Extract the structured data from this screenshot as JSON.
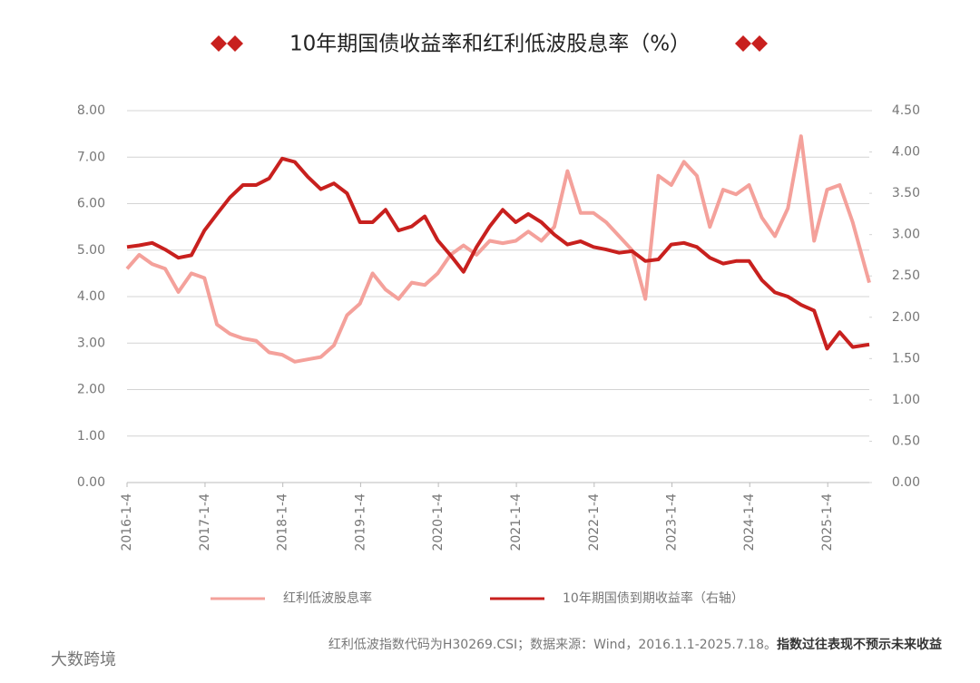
{
  "chart_data": {
    "type": "line",
    "title": "10年期国债收益率和红利低波股息率（%）",
    "x": [
      "2016-1-4",
      "2016-3-1",
      "2016-5-1",
      "2016-7-1",
      "2016-9-1",
      "2016-11-1",
      "2017-1-1",
      "2017-3-1",
      "2017-5-1",
      "2017-7-1",
      "2017-9-1",
      "2017-11-1",
      "2018-1-1",
      "2018-3-1",
      "2018-5-1",
      "2018-7-1",
      "2018-9-1",
      "2018-11-1",
      "2019-1-1",
      "2019-3-1",
      "2019-5-1",
      "2019-7-1",
      "2019-9-1",
      "2019-11-1",
      "2020-1-1",
      "2020-3-1",
      "2020-5-1",
      "2020-7-1",
      "2020-9-1",
      "2020-11-1",
      "2021-1-1",
      "2021-3-1",
      "2021-5-1",
      "2021-7-1",
      "2021-9-1",
      "2021-11-1",
      "2022-1-1",
      "2022-3-1",
      "2022-5-1",
      "2022-7-1",
      "2022-9-1",
      "2022-11-1",
      "2023-1-1",
      "2023-3-1",
      "2023-5-1",
      "2023-7-1",
      "2023-9-1",
      "2023-11-1",
      "2024-1-1",
      "2024-3-1",
      "2024-5-1",
      "2024-7-1",
      "2024-9-1",
      "2024-11-1",
      "2025-1-1",
      "2025-3-1",
      "2025-5-1",
      "2025-7-18"
    ],
    "xlim": [
      "2016-1-4",
      "2025-7-18"
    ],
    "xticks": [
      "2016-1-4",
      "2017-1-4",
      "2018-1-4",
      "2019-1-4",
      "2020-1-4",
      "2021-1-4",
      "2022-1-4",
      "2023-1-4",
      "2024-1-4",
      "2025-1-4"
    ],
    "ylim": [
      0,
      8
    ],
    "yticks": [
      {
        "value": 0,
        "label": "0.00"
      },
      {
        "value": 1,
        "label": "1.00"
      },
      {
        "value": 2,
        "label": "2.00"
      },
      {
        "value": 3,
        "label": "3.00"
      },
      {
        "value": 4,
        "label": "4.00"
      },
      {
        "value": 5,
        "label": "5.00"
      },
      {
        "value": 6,
        "label": "6.00"
      },
      {
        "value": 7,
        "label": "7.00"
      },
      {
        "value": 8,
        "label": "8.00"
      }
    ],
    "y2lim": [
      0,
      4.5
    ],
    "y2ticks": [
      {
        "value": 0,
        "label": "0.00"
      },
      {
        "value": 0.5,
        "label": "0.50"
      },
      {
        "value": 1,
        "label": "1.00"
      },
      {
        "value": 1.5,
        "label": "1.50"
      },
      {
        "value": 2,
        "label": "2.00"
      },
      {
        "value": 2.5,
        "label": "2.50"
      },
      {
        "value": 3,
        "label": "3.00"
      },
      {
        "value": 3.5,
        "label": "3.50"
      },
      {
        "value": 4,
        "label": "4.00"
      },
      {
        "value": 4.5,
        "label": "4.50"
      }
    ],
    "grid": true,
    "series": [
      {
        "name": "红利低波股息率",
        "color": "#f4a19b",
        "values": [
          4.6,
          4.9,
          4.7,
          4.6,
          4.1,
          4.5,
          4.4,
          3.4,
          3.2,
          3.1,
          3.05,
          2.8,
          2.75,
          2.6,
          2.65,
          2.7,
          2.95,
          3.6,
          3.85,
          4.5,
          4.15,
          3.95,
          4.3,
          4.25,
          4.5,
          4.9,
          5.1,
          4.9,
          5.2,
          5.15,
          5.2,
          5.4,
          5.2,
          5.5,
          6.7,
          5.8,
          5.8,
          5.6,
          5.3,
          5.0,
          3.95,
          6.6,
          6.4,
          6.9,
          6.6,
          5.5,
          6.3,
          6.2,
          6.4,
          5.7,
          5.3,
          5.9,
          7.45,
          5.2,
          6.3,
          6.4,
          5.6,
          4.3
        ]
      },
      {
        "name": "10年期国债到期收益率（右轴）",
        "color": "#c8201e",
        "axis": "y2",
        "values": [
          2.85,
          2.87,
          2.9,
          2.82,
          2.72,
          2.75,
          3.05,
          3.25,
          3.45,
          3.6,
          3.6,
          3.68,
          3.92,
          3.88,
          3.7,
          3.55,
          3.62,
          3.5,
          3.15,
          3.15,
          3.3,
          3.05,
          3.1,
          3.22,
          2.93,
          2.75,
          2.55,
          2.85,
          3.1,
          3.3,
          3.15,
          3.25,
          3.15,
          3.0,
          2.88,
          2.92,
          2.85,
          2.82,
          2.78,
          2.8,
          2.68,
          2.7,
          2.88,
          2.9,
          2.85,
          2.72,
          2.65,
          2.68,
          2.68,
          2.45,
          2.3,
          2.25,
          2.15,
          2.08,
          1.62,
          1.82,
          1.64,
          1.67
        ]
      }
    ],
    "footnote": "红利低波指数代码为H30269.CSI；数据来源：Wind，2016.1.1-2025.7.18。",
    "footnote_bold": "指数过往表现不预示未来收益",
    "watermark": "大数跨境"
  }
}
